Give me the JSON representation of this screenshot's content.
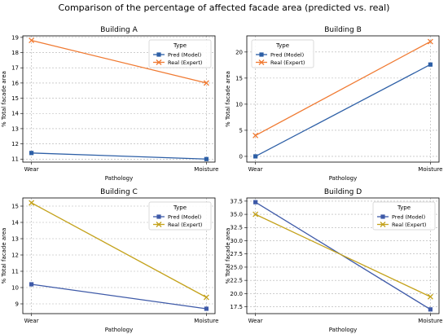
{
  "figure": {
    "title": "Comparison of the percentage of affected facade area (predicted vs. real)"
  },
  "chart_data": [
    {
      "type": "line",
      "title": "Building A",
      "xlabel": "Pathology",
      "ylabel": "% Total facade area",
      "categories": [
        "Wear",
        "Moisture"
      ],
      "ylim": [
        10.8,
        19.1
      ],
      "yticks": [
        11,
        12,
        13,
        14,
        15,
        16,
        17,
        18,
        19
      ],
      "grid": true,
      "legend": {
        "title": "Type",
        "placement": "top-right"
      },
      "series": [
        {
          "name": "Pred (Model)",
          "values": [
            11.4,
            11.0
          ],
          "color": "#2d5fa6",
          "marker": "square"
        },
        {
          "name": "Real (Expert)",
          "values": [
            18.8,
            16.0
          ],
          "color": "#f07a32",
          "marker": "x"
        }
      ]
    },
    {
      "type": "line",
      "title": "Building B",
      "xlabel": "Pathology",
      "ylabel": "% Total facade area",
      "categories": [
        "Wear",
        "Moisture"
      ],
      "ylim": [
        -1.1,
        23.1
      ],
      "yticks": [
        0,
        5,
        10,
        15,
        20
      ],
      "grid": true,
      "legend": {
        "title": "Type",
        "placement": "top-left"
      },
      "series": [
        {
          "name": "Pred (Model)",
          "values": [
            0.0,
            17.6
          ],
          "color": "#2d5fa6",
          "marker": "square"
        },
        {
          "name": "Real (Expert)",
          "values": [
            4.0,
            22.0
          ],
          "color": "#f07a32",
          "marker": "x"
        }
      ]
    },
    {
      "type": "line",
      "title": "Building C",
      "xlabel": "Pathology",
      "ylabel": "% Total facade area",
      "categories": [
        "Wear",
        "Moisture"
      ],
      "ylim": [
        8.4,
        15.5
      ],
      "yticks": [
        9,
        10,
        11,
        12,
        13,
        14,
        15
      ],
      "grid": true,
      "legend": {
        "title": "Type",
        "placement": "top-right"
      },
      "series": [
        {
          "name": "Pred (Model)",
          "values": [
            10.2,
            8.7
          ],
          "color": "#3e5aa8",
          "marker": "square"
        },
        {
          "name": "Real (Expert)",
          "values": [
            15.2,
            9.4
          ],
          "color": "#c4a21b",
          "marker": "x"
        }
      ]
    },
    {
      "type": "line",
      "title": "Building D",
      "xlabel": "Pathology",
      "ylabel": "% Total facade area",
      "categories": [
        "Wear",
        "Moisture"
      ],
      "ylim": [
        16.2,
        38.1
      ],
      "yticks": [
        17.5,
        20.0,
        22.5,
        25.0,
        27.5,
        30.0,
        32.5,
        35.0,
        37.5
      ],
      "grid": true,
      "legend": {
        "title": "Type",
        "placement": "top-right"
      },
      "series": [
        {
          "name": "Pred (Model)",
          "values": [
            37.3,
            17.0
          ],
          "color": "#3e5aa8",
          "marker": "square"
        },
        {
          "name": "Real (Expert)",
          "values": [
            35.0,
            19.4
          ],
          "color": "#c4a21b",
          "marker": "x"
        }
      ]
    }
  ]
}
